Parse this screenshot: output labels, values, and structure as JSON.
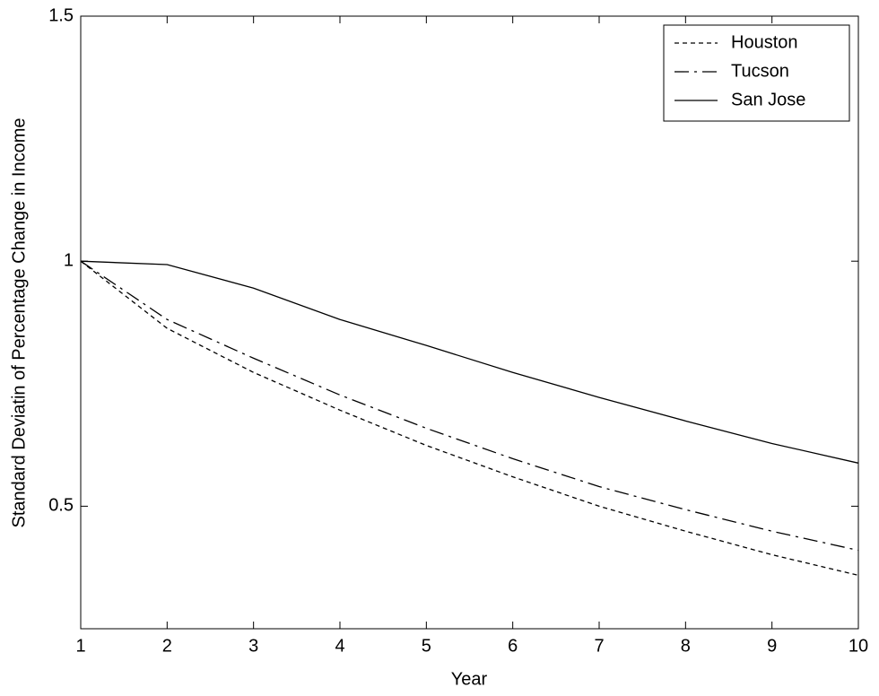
{
  "chart_data": {
    "type": "line",
    "x_label": "Year",
    "y_label": "Standard Deviatin of Percentage Change in Income",
    "x": [
      1,
      2,
      3,
      4,
      5,
      6,
      7,
      8,
      9,
      10
    ],
    "series": [
      {
        "name": "Houston",
        "color": "#000000",
        "style": "dotted",
        "values": [
          1.0,
          0.863,
          0.773,
          0.696,
          0.624,
          0.56,
          0.5,
          0.449,
          0.401,
          0.359
        ]
      },
      {
        "name": "Tucson",
        "color": "#000000",
        "style": "dashdot",
        "values": [
          1.0,
          0.881,
          0.802,
          0.727,
          0.659,
          0.597,
          0.54,
          0.493,
          0.449,
          0.41
        ]
      },
      {
        "name": "San Jose",
        "color": "#000000",
        "style": "solid",
        "values": [
          1.0,
          0.993,
          0.945,
          0.881,
          0.828,
          0.773,
          0.722,
          0.674,
          0.628,
          0.588
        ]
      }
    ],
    "xlim": [
      1,
      10
    ],
    "xticks": [
      1,
      2,
      3,
      4,
      5,
      6,
      7,
      8,
      9,
      10
    ],
    "ylim": [
      0.25,
      1.5
    ],
    "yticks": [
      0.5,
      1,
      1.5
    ],
    "legend": "top-right"
  }
}
